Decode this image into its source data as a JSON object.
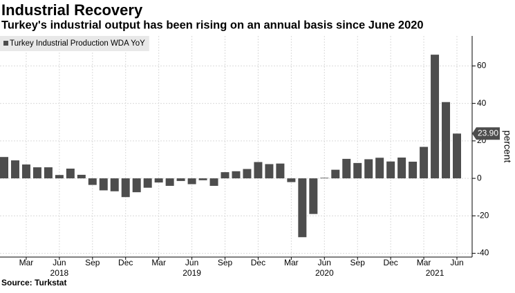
{
  "chart_data": {
    "type": "bar",
    "title": "Industrial Recovery",
    "subtitle": "Turkey's industrial output has been rising on an annual basis since June 2020",
    "source": "Source: Turkstat",
    "y_axis_label": "percent",
    "categories": [
      null,
      null,
      "Mar",
      null,
      null,
      "Jun",
      null,
      null,
      "Sep",
      null,
      null,
      "Dec",
      null,
      null,
      "Mar",
      null,
      null,
      "Jun",
      null,
      null,
      "Sep",
      null,
      null,
      "Dec",
      null,
      null,
      "Mar",
      null,
      null,
      "Jun",
      null,
      null,
      "Sep",
      null,
      null,
      "Dec",
      null,
      null,
      "Mar",
      null,
      null,
      "Jun"
    ],
    "categories2": [
      null,
      null,
      null,
      null,
      null,
      "2018",
      null,
      null,
      null,
      null,
      null,
      null,
      null,
      null,
      null,
      null,
      null,
      "2019",
      null,
      null,
      null,
      null,
      null,
      null,
      null,
      null,
      null,
      null,
      null,
      "2020",
      null,
      null,
      null,
      null,
      null,
      null,
      null,
      null,
      null,
      "2021",
      null,
      null
    ],
    "series": [
      {
        "name": "Turkey Industrial Production WDA YoY",
        "color": "#4d4d4d",
        "values": [
          11.4,
          9.6,
          7.4,
          5.9,
          5.9,
          1.8,
          5.2,
          1.9,
          -3.5,
          -6.4,
          -6.9,
          -10.0,
          -7.4,
          -5.0,
          -2.2,
          -4.0,
          -1.4,
          -3.1,
          -1.0,
          -4.0,
          3.3,
          3.8,
          5.0,
          8.7,
          7.6,
          7.9,
          -2.0,
          -31.4,
          -19.0,
          0.3,
          4.6,
          10.4,
          8.2,
          10.2,
          11.0,
          9.0,
          11.1,
          8.9,
          16.8,
          66.0,
          40.7,
          23.9
        ],
        "value_labels": [
          null,
          null,
          null,
          null,
          null,
          null,
          null,
          null,
          null,
          null,
          null,
          null,
          null,
          null,
          null,
          null,
          null,
          null,
          null,
          null,
          null,
          null,
          null,
          null,
          null,
          null,
          null,
          null,
          null,
          null,
          null,
          null,
          null,
          null,
          null,
          null,
          null,
          null,
          null,
          null,
          null,
          "23.90"
        ]
      }
    ],
    "ylim": [
      -42,
      76
    ],
    "yticks": [
      -40,
      -20,
      0,
      20,
      40,
      60
    ],
    "grid": true,
    "legend": "top-left",
    "y_axis_side": "right"
  }
}
